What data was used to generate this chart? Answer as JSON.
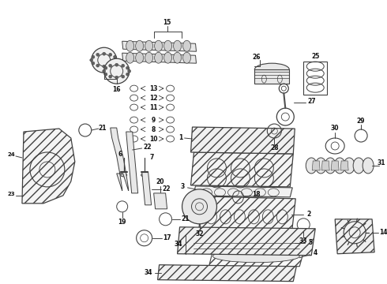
{
  "bg_color": "#ffffff",
  "lc": "#404040",
  "tc": "#111111",
  "fig_w": 4.9,
  "fig_h": 3.6,
  "dpi": 100
}
